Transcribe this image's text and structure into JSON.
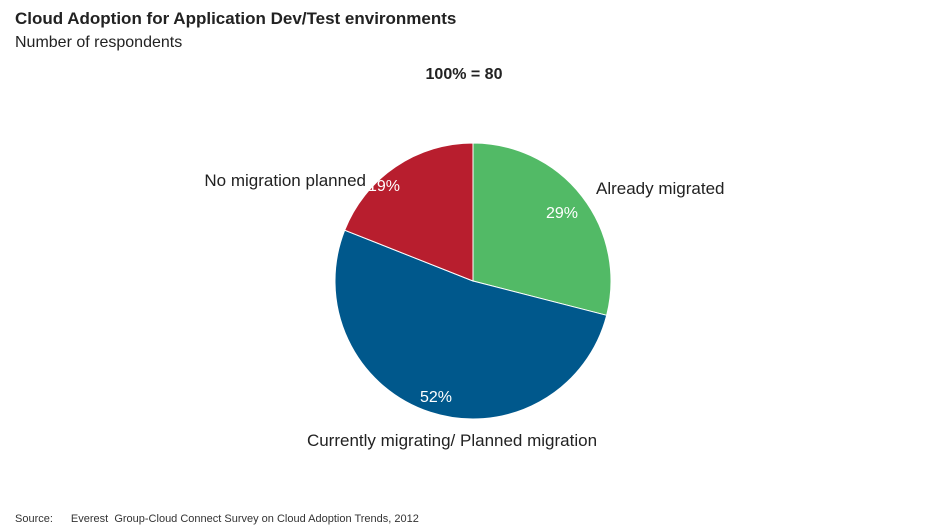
{
  "header": {
    "title": "Cloud Adoption for Application Dev/Test  environments",
    "subtitle": "Number of respondents",
    "total": "100% = 80"
  },
  "chart_data": {
    "type": "pie",
    "slices": [
      {
        "label": "Already migrated",
        "value": 29,
        "value_label": "29%",
        "color": "#52BA66"
      },
      {
        "label": "Currently migrating/ Planned migration",
        "value": 52,
        "value_label": "52%",
        "color": "#00588C"
      },
      {
        "label": "No migration planned",
        "value": 19,
        "value_label": "19%",
        "color": "#B81E2E"
      }
    ],
    "start_angle": "12 o'clock",
    "direction": "clockwise"
  },
  "footer": {
    "source_label": "Source:",
    "source_text": "Everest  Group-Cloud Connect Survey on Cloud Adoption Trends, 2012"
  }
}
